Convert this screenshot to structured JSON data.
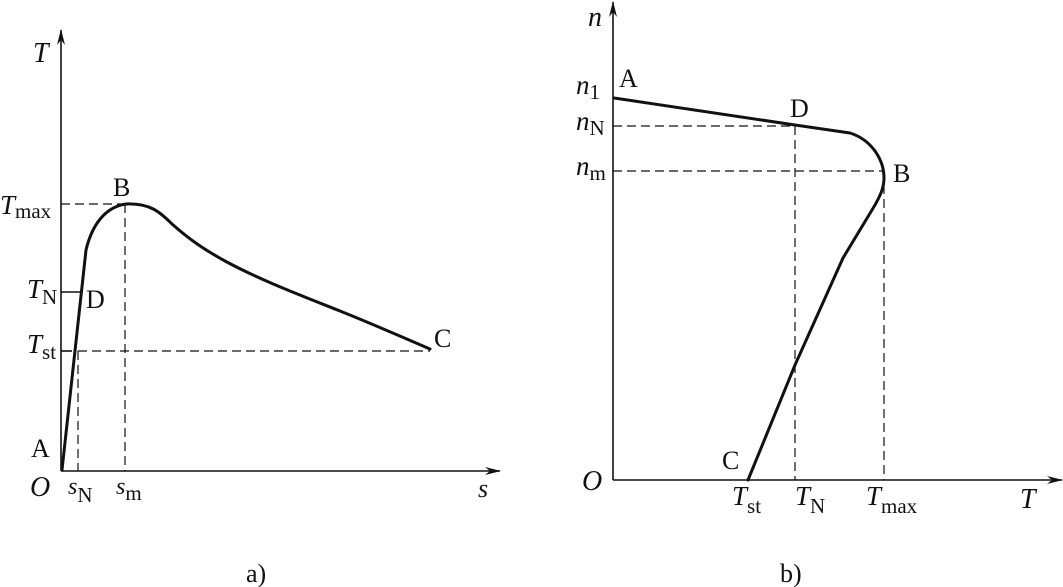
{
  "panel_a": {
    "caption": "a)",
    "y_axis_label": "T",
    "x_axis_label": "s",
    "origin_label": "O",
    "y_ticks": [
      {
        "main": "T",
        "sub": "max"
      },
      {
        "main": "T",
        "sub": "N"
      },
      {
        "main": "T",
        "sub": "st"
      }
    ],
    "x_ticks": [
      {
        "main": "s",
        "sub": "N"
      },
      {
        "main": "s",
        "sub": "m"
      }
    ],
    "points": {
      "A": "A",
      "B": "B",
      "C": "C",
      "D": "D"
    }
  },
  "panel_b": {
    "caption": "b)",
    "y_axis_label": "n",
    "x_axis_label": "T",
    "origin_label": "O",
    "y_ticks": [
      {
        "main": "n",
        "sub": "1"
      },
      {
        "main": "n",
        "sub": "N"
      },
      {
        "main": "n",
        "sub": "m"
      }
    ],
    "x_ticks": [
      {
        "main": "T",
        "sub": "st"
      },
      {
        "main": "T",
        "sub": "N"
      },
      {
        "main": "T",
        "sub": "max"
      }
    ],
    "points": {
      "A": "A",
      "B": "B",
      "C": "C",
      "D": "D"
    }
  }
}
